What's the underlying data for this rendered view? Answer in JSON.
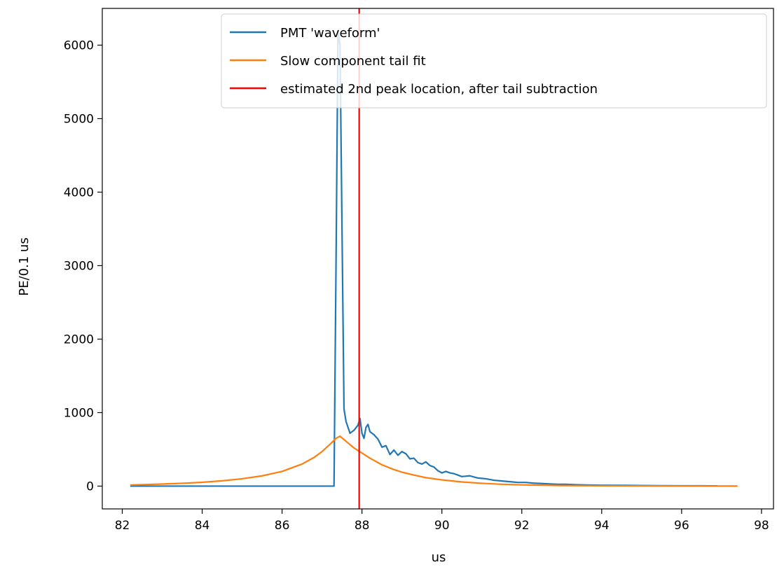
{
  "chart_data": {
    "type": "line",
    "title": "",
    "xlabel": "us",
    "ylabel": "PE/0.1 us",
    "xlim": [
      81.5,
      98.3
    ],
    "ylim": [
      -310,
      6500
    ],
    "xticks": [
      82,
      84,
      86,
      88,
      90,
      92,
      94,
      96,
      98
    ],
    "xtick_labels": [
      "82",
      "84",
      "86",
      "88",
      "90",
      "92",
      "94",
      "96",
      "98"
    ],
    "yticks": [
      0,
      1000,
      2000,
      3000,
      4000,
      5000,
      6000
    ],
    "ytick_labels": [
      "0",
      "1000",
      "2000",
      "3000",
      "4000",
      "5000",
      "6000"
    ],
    "grid": false,
    "legend_position": "upper right",
    "series": [
      {
        "name": "PMT 'waveform'",
        "kind": "line",
        "color": "#1f77b4",
        "x": [
          82.2,
          87.3,
          87.35,
          87.4,
          87.45,
          87.5,
          87.55,
          87.6,
          87.7,
          87.8,
          87.9,
          87.95,
          88.0,
          88.05,
          88.1,
          88.15,
          88.2,
          88.3,
          88.4,
          88.5,
          88.6,
          88.7,
          88.8,
          88.9,
          89.0,
          89.1,
          89.2,
          89.3,
          89.4,
          89.5,
          89.6,
          89.7,
          89.8,
          89.9,
          90.0,
          90.1,
          90.2,
          90.3,
          90.4,
          90.5,
          90.7,
          90.9,
          91.1,
          91.3,
          91.5,
          91.7,
          91.9,
          92.1,
          92.3,
          92.5,
          92.7,
          92.9,
          93.1,
          93.3,
          93.6,
          94.0,
          94.5,
          95.0,
          95.5,
          96.0,
          96.5,
          96.9
        ],
        "y": [
          0,
          0,
          3000,
          6200,
          6000,
          3500,
          1050,
          880,
          720,
          760,
          830,
          920,
          720,
          650,
          800,
          840,
          740,
          700,
          640,
          530,
          550,
          430,
          490,
          420,
          470,
          440,
          370,
          380,
          320,
          300,
          330,
          280,
          260,
          210,
          180,
          200,
          180,
          170,
          150,
          130,
          140,
          110,
          100,
          80,
          70,
          60,
          50,
          50,
          40,
          35,
          30,
          25,
          25,
          20,
          15,
          12,
          10,
          8,
          6,
          5,
          4,
          3
        ]
      },
      {
        "name": "Slow component tail fit",
        "kind": "line",
        "color": "#ff7f0e",
        "x": [
          82.2,
          82.5,
          83.0,
          83.5,
          84.0,
          84.5,
          85.0,
          85.5,
          86.0,
          86.5,
          86.8,
          87.0,
          87.2,
          87.35,
          87.45,
          87.6,
          87.8,
          88.0,
          88.2,
          88.5,
          88.8,
          89.0,
          89.3,
          89.6,
          90.0,
          90.5,
          91.0,
          91.5,
          92.0,
          93.0,
          94.0,
          95.0,
          96.0,
          97.4
        ],
        "y": [
          15,
          20,
          28,
          38,
          52,
          72,
          100,
          140,
          200,
          300,
          390,
          470,
          570,
          650,
          680,
          610,
          520,
          450,
          380,
          290,
          225,
          190,
          150,
          115,
          85,
          57,
          38,
          25,
          17,
          8,
          5,
          3,
          2,
          1
        ]
      },
      {
        "name": "estimated 2nd peak location, after tail subtraction",
        "kind": "vline",
        "color": "#ff0000",
        "x_value": 87.93
      }
    ]
  }
}
